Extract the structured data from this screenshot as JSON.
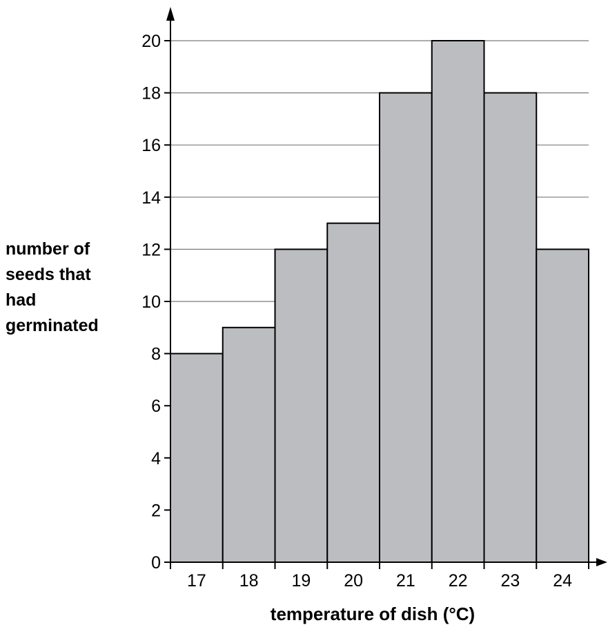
{
  "chart_data": {
    "type": "bar",
    "title": "",
    "xlabel": "temperature of dish (°C)",
    "ylabel_lines": [
      "number of",
      "seeds that",
      "had",
      "germinated"
    ],
    "categories": [
      "17",
      "18",
      "19",
      "20",
      "21",
      "22",
      "23",
      "24"
    ],
    "values": [
      8,
      9,
      12,
      13,
      18,
      20,
      18,
      12
    ],
    "ylim": [
      0,
      20
    ],
    "yticks": [
      "0",
      "2",
      "4",
      "6",
      "8",
      "10",
      "12",
      "14",
      "16",
      "18",
      "20"
    ],
    "grid": true,
    "legend": "none",
    "bar_color": "#bcbdc0",
    "edge_color": "#000000"
  }
}
